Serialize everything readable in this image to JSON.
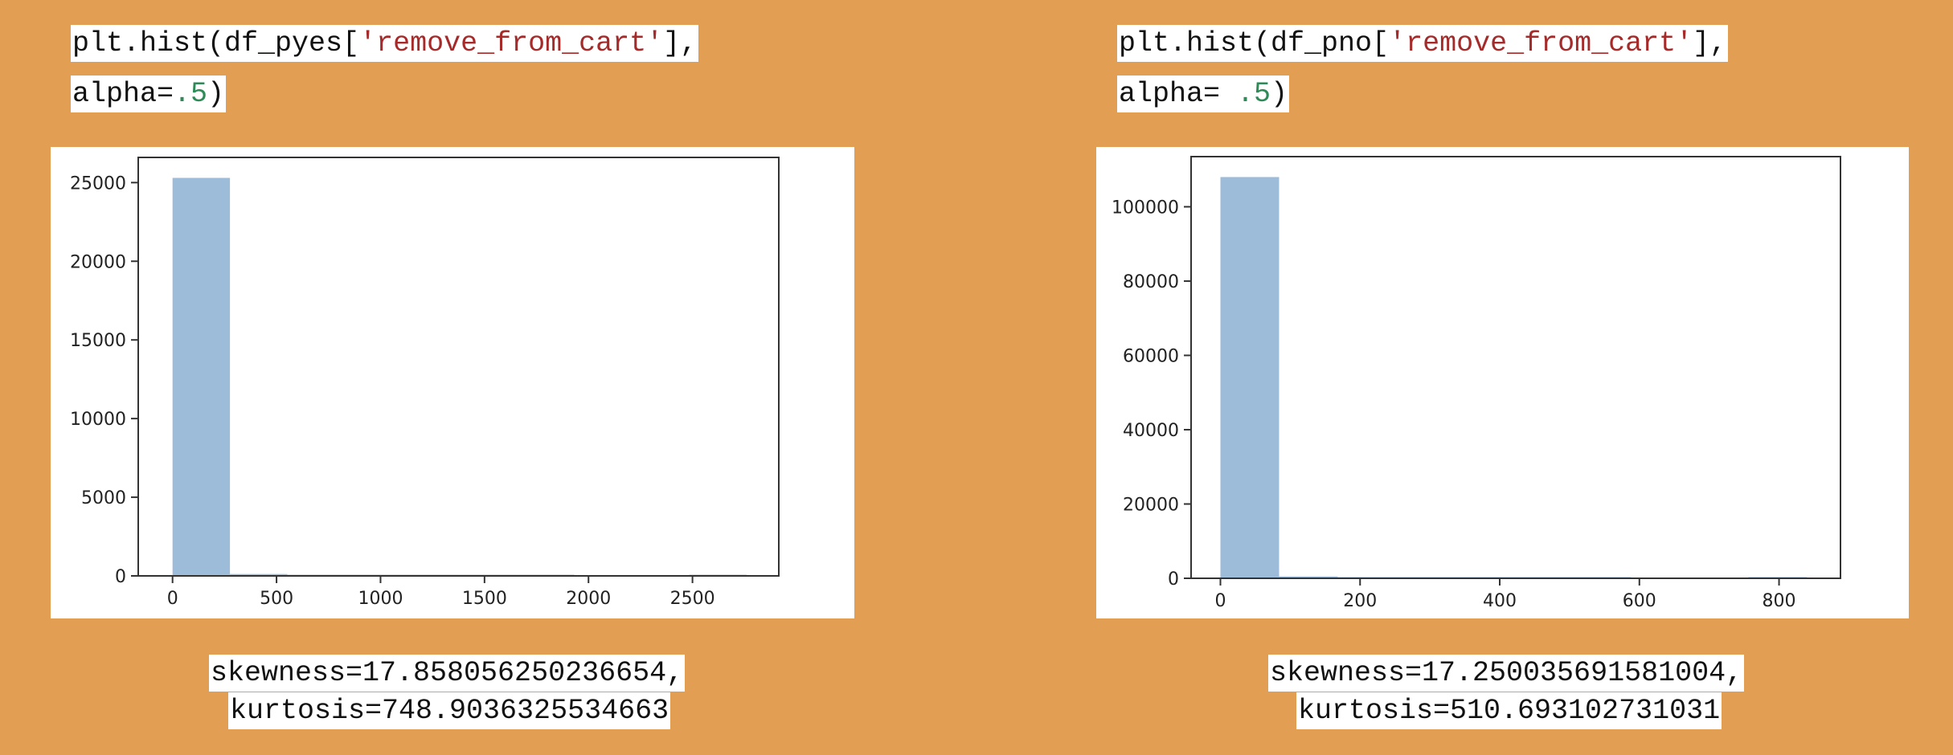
{
  "background_color": "#E29F53",
  "bar_color": "#9DBCD9",
  "left": {
    "code_line1": {
      "prefix": "plt.hist(df_pyes[",
      "string": "'remove_from_cart'",
      "suffix": "],"
    },
    "code_line2": {
      "prefix": "alpha=",
      "number": ".5",
      "suffix": ")"
    },
    "skewness_line": "skewness=17.858056250236654,",
    "kurtosis_line": "kurtosis=748.9036325534663"
  },
  "right": {
    "code_line1": {
      "prefix": "plt.hist(df_pno[",
      "string": "'remove_from_cart'",
      "suffix": "],"
    },
    "code_line2": {
      "prefix": "alpha= ",
      "number": ".5",
      "suffix": ")"
    },
    "skewness_line": "skewness=17.250035691581004,",
    "kurtosis_line": "kurtosis=510.693102731031"
  },
  "chart_data": [
    {
      "type": "bar",
      "title": "",
      "xlabel": "",
      "ylabel": "",
      "xlim": [
        -165,
        2915
      ],
      "ylim": [
        0,
        26600
      ],
      "xticks": [
        0,
        500,
        1000,
        1500,
        2000,
        2500
      ],
      "yticks": [
        0,
        5000,
        10000,
        15000,
        20000,
        25000
      ],
      "grid": false,
      "bins": [
        {
          "x0": 0,
          "x1": 276,
          "count": 25300
        },
        {
          "x0": 276,
          "x1": 552,
          "count": 120
        },
        {
          "x0": 552,
          "x1": 828,
          "count": 15
        },
        {
          "x0": 828,
          "x1": 1104,
          "count": 5
        },
        {
          "x0": 1104,
          "x1": 1380,
          "count": 2
        },
        {
          "x0": 1380,
          "x1": 1656,
          "count": 1
        },
        {
          "x0": 1656,
          "x1": 1932,
          "count": 1
        },
        {
          "x0": 1932,
          "x1": 2208,
          "count": 0
        },
        {
          "x0": 2208,
          "x1": 2484,
          "count": 0
        },
        {
          "x0": 2484,
          "x1": 2760,
          "count": 1
        }
      ]
    },
    {
      "type": "bar",
      "title": "",
      "xlabel": "",
      "ylabel": "",
      "xlim": [
        -42,
        888
      ],
      "ylim": [
        0,
        113500
      ],
      "xticks": [
        0,
        200,
        400,
        600,
        800
      ],
      "yticks": [
        0,
        20000,
        40000,
        60000,
        80000,
        100000
      ],
      "grid": false,
      "bins": [
        {
          "x0": 0,
          "x1": 84,
          "count": 108000
        },
        {
          "x0": 84,
          "x1": 168,
          "count": 500
        },
        {
          "x0": 168,
          "x1": 252,
          "count": 40
        },
        {
          "x0": 252,
          "x1": 336,
          "count": 10
        },
        {
          "x0": 336,
          "x1": 420,
          "count": 3
        },
        {
          "x0": 420,
          "x1": 504,
          "count": 2
        },
        {
          "x0": 504,
          "x1": 588,
          "count": 1
        },
        {
          "x0": 588,
          "x1": 672,
          "count": 0
        },
        {
          "x0": 672,
          "x1": 756,
          "count": 0
        },
        {
          "x0": 756,
          "x1": 840,
          "count": 1
        }
      ]
    }
  ]
}
